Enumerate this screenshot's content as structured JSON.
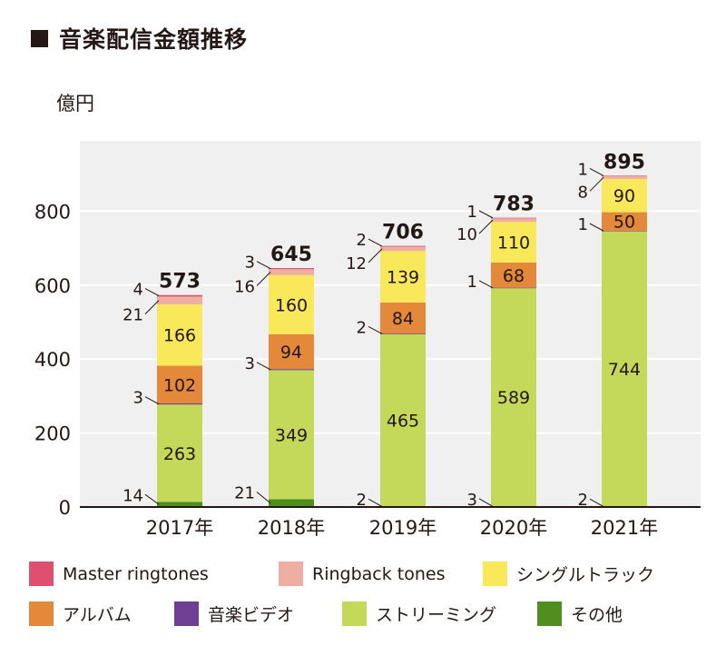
{
  "title": "音楽配信金額推移",
  "chart_data": {
    "type": "bar",
    "stacked": true,
    "unit": "億円",
    "categories": [
      "2017年",
      "2018年",
      "2019年",
      "2020年",
      "2021年"
    ],
    "totals": [
      573,
      645,
      706,
      783,
      895
    ],
    "ylim": [
      0,
      990
    ],
    "yticks": [
      0,
      200,
      400,
      600,
      800
    ],
    "legend_position": "bottom",
    "series": [
      {
        "name": "その他",
        "color": "#4e8f1f",
        "values": [
          14,
          21,
          2,
          3,
          2
        ]
      },
      {
        "name": "ストリーミング",
        "color": "#c4d95a",
        "values": [
          263,
          349,
          465,
          589,
          744
        ]
      },
      {
        "name": "音楽ビデオ",
        "color": "#6f3f93",
        "values": [
          3,
          3,
          2,
          1,
          1
        ]
      },
      {
        "name": "アルバム",
        "color": "#e4883a",
        "values": [
          102,
          94,
          84,
          68,
          50
        ]
      },
      {
        "name": "シングルトラック",
        "color": "#f9e85a",
        "values": [
          166,
          160,
          139,
          110,
          90
        ]
      },
      {
        "name": "Ringback tones",
        "color": "#efaea2",
        "values": [
          21,
          16,
          12,
          10,
          8
        ]
      },
      {
        "name": "Master ringtones",
        "color": "#df4f6f",
        "values": [
          4,
          3,
          2,
          1,
          1
        ]
      }
    ],
    "legend": [
      "Master ringtones",
      "Ringback tones",
      "シングルトラック",
      "アルバム",
      "音楽ビデオ",
      "ストリーミング",
      "その他"
    ]
  }
}
